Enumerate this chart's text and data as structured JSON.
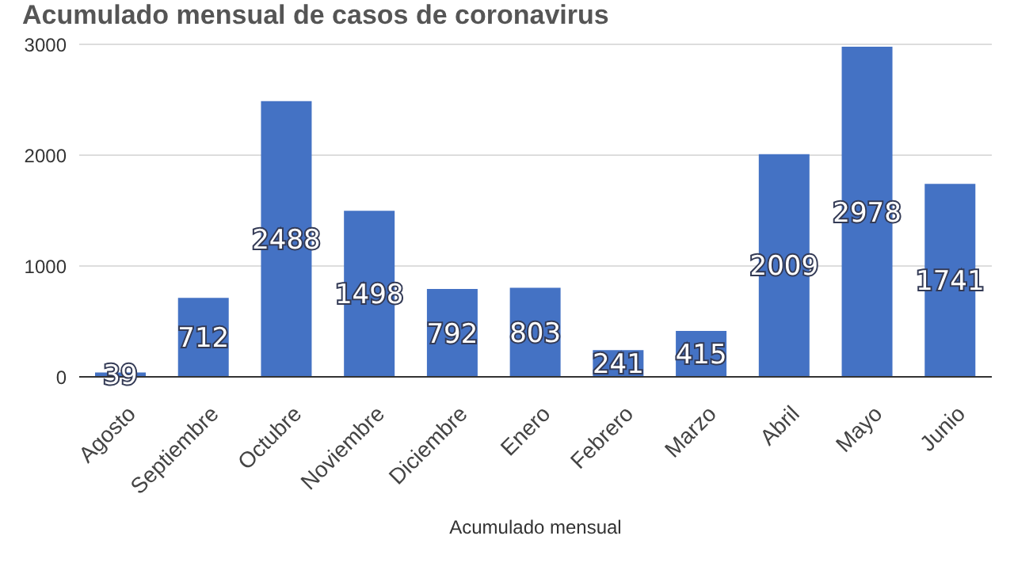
{
  "chart_data": {
    "type": "bar",
    "title": "Acumulado mensual de casos de coronavirus",
    "xlabel": "Acumulado mensual",
    "categories": [
      "Agosto",
      "Septiembre",
      "Octubre",
      "Noviembre",
      "Diciembre",
      "Enero",
      "Febrero",
      "Marzo",
      "Abril",
      "Mayo",
      "Junio"
    ],
    "values": [
      39,
      712,
      2488,
      1498,
      792,
      803,
      241,
      415,
      2009,
      2978,
      1741
    ],
    "color": "#4472c4",
    "ylim": [
      0,
      3000
    ],
    "yticks": [
      0,
      1000,
      2000,
      3000
    ],
    "grid": "y",
    "data_labels": true
  }
}
